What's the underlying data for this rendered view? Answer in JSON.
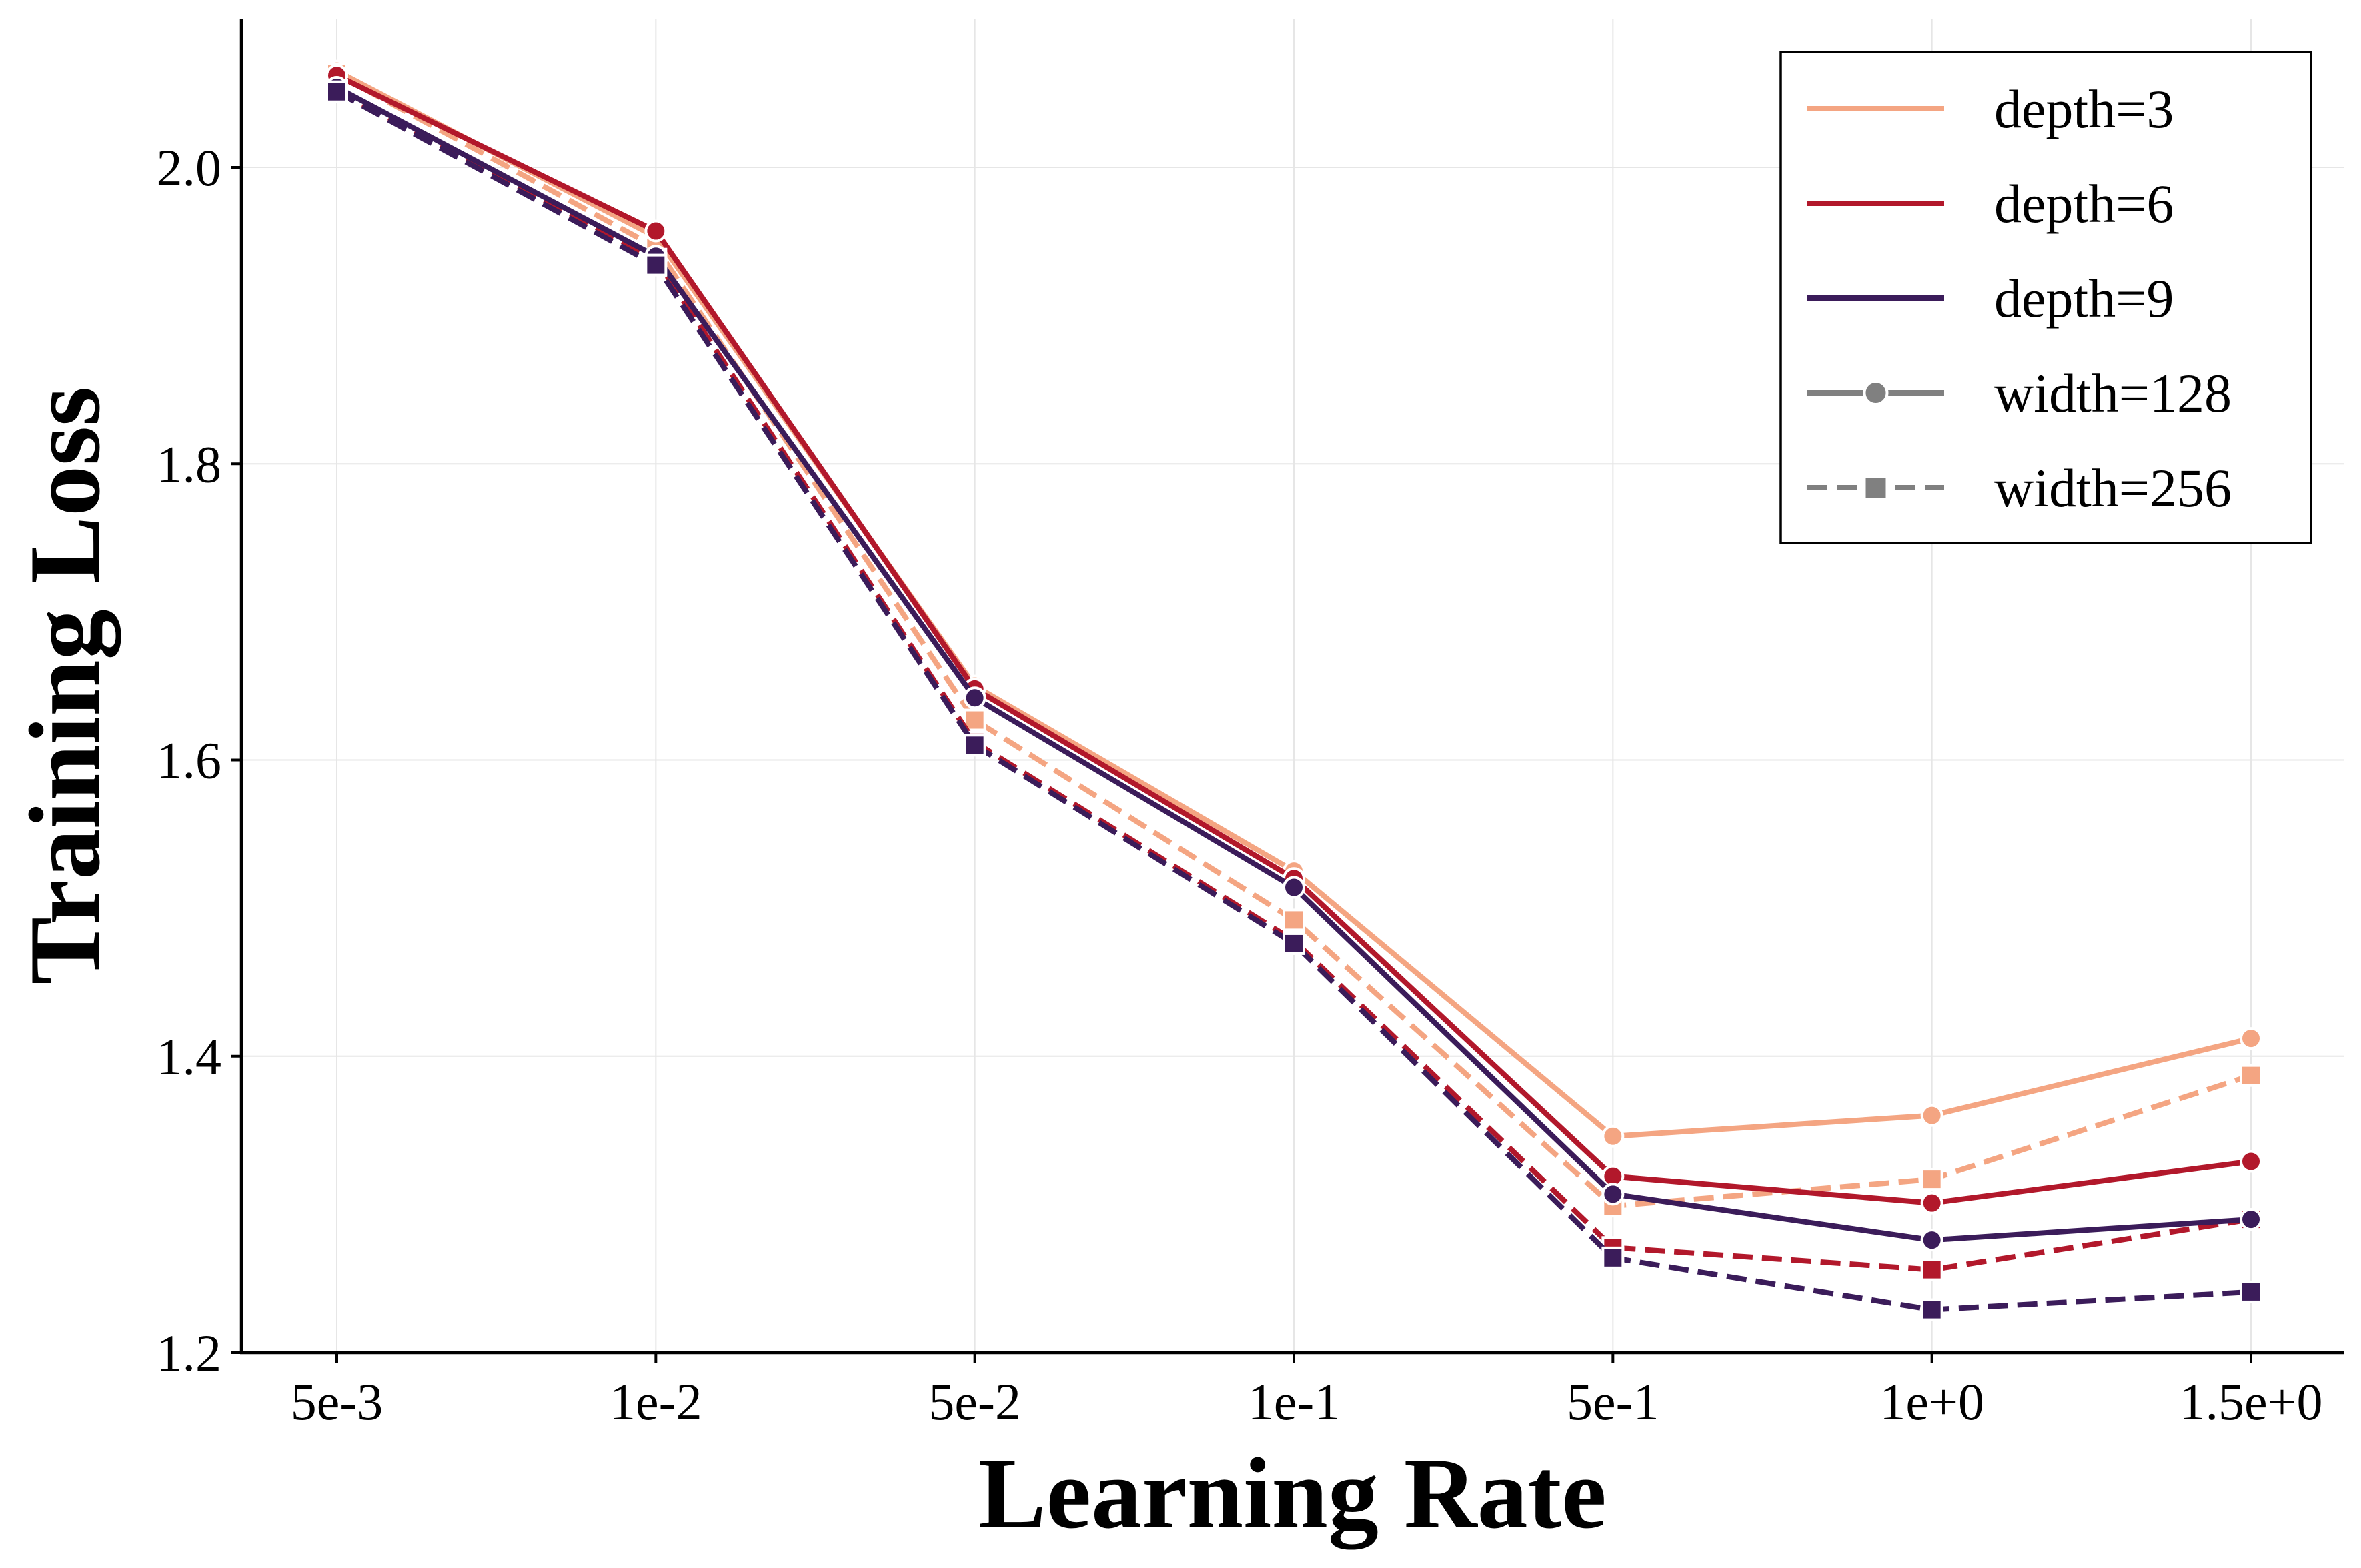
{
  "chart_data": {
    "type": "line",
    "title": "",
    "xlabel": "Learning Rate",
    "ylabel": "Training Loss",
    "categories": [
      "5e-3",
      "1e-2",
      "5e-2",
      "1e-1",
      "5e-1",
      "1e+0",
      "1.5e+0"
    ],
    "ylim": [
      1.2,
      2.1
    ],
    "yticks": [
      "1.2",
      "1.4",
      "1.6",
      "1.8",
      "2.0"
    ],
    "grid": true,
    "legend_position": "top-right",
    "colors": {
      "depth=3": "#f4a582",
      "depth=6": "#b2182b",
      "depth=9": "#3b1c5a",
      "legend_style": "#808080"
    },
    "legend": [
      {
        "label": "depth=3",
        "kind": "color"
      },
      {
        "label": "depth=6",
        "kind": "color"
      },
      {
        "label": "depth=9",
        "kind": "color"
      },
      {
        "label": "width=128",
        "kind": "style",
        "linestyle": "solid",
        "marker": "circle"
      },
      {
        "label": "width=256",
        "kind": "style",
        "linestyle": "dashed",
        "marker": "square"
      }
    ],
    "series": [
      {
        "name": "depth=3, width=128",
        "depth": "depth=3",
        "width": "width=128",
        "linestyle": "solid",
        "marker": "circle",
        "values": [
          2.065,
          1.953,
          1.65,
          1.525,
          1.346,
          1.36,
          1.412
        ]
      },
      {
        "name": "depth=3, width=256",
        "depth": "depth=3",
        "width": "width=256",
        "linestyle": "dashed",
        "marker": "square",
        "values": [
          2.063,
          1.946,
          1.627,
          1.492,
          1.299,
          1.317,
          1.387
        ]
      },
      {
        "name": "depth=6, width=128",
        "depth": "depth=6",
        "width": "width=128",
        "linestyle": "solid",
        "marker": "circle",
        "values": [
          2.062,
          1.957,
          1.648,
          1.52,
          1.319,
          1.301,
          1.329
        ]
      },
      {
        "name": "depth=6, width=256",
        "depth": "depth=6",
        "width": "width=256",
        "linestyle": "dashed",
        "marker": "square",
        "values": [
          2.052,
          1.938,
          1.612,
          1.478,
          1.271,
          1.256,
          1.29
        ]
      },
      {
        "name": "depth=9, width=128",
        "depth": "depth=9",
        "width": "width=128",
        "linestyle": "solid",
        "marker": "circle",
        "values": [
          2.054,
          1.94,
          1.642,
          1.514,
          1.307,
          1.276,
          1.29
        ]
      },
      {
        "name": "depth=9, width=256",
        "depth": "depth=9",
        "width": "width=256",
        "linestyle": "dashed",
        "marker": "square",
        "values": [
          2.051,
          1.934,
          1.61,
          1.476,
          1.264,
          1.229,
          1.241
        ]
      }
    ]
  }
}
